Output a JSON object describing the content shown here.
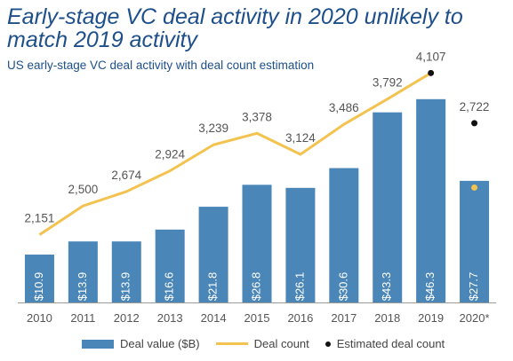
{
  "title": "Early-stage VC deal activity in 2020 unlikely to match 2019 activity",
  "subtitle": "US early-stage VC deal activity with deal count estimation",
  "colors": {
    "bar": "#4a86b8",
    "line": "#f4c24f",
    "estimate": "#111111",
    "axis": "#9a9a9a",
    "label": "#555555"
  },
  "chart_data": {
    "type": "bar",
    "categories": [
      "2010",
      "2011",
      "2012",
      "2013",
      "2014",
      "2015",
      "2016",
      "2017",
      "2018",
      "2019",
      "2020*"
    ],
    "series": [
      {
        "name": "Deal value ($B)",
        "type": "bar",
        "values": [
          10.9,
          13.9,
          13.9,
          16.6,
          21.8,
          26.8,
          26.1,
          30.6,
          43.3,
          46.3,
          27.7
        ],
        "labels": [
          "$10.9",
          "$13.9",
          "$13.9",
          "$16.6",
          "$21.8",
          "$26.8",
          "$26.1",
          "$30.6",
          "$43.3",
          "$46.3",
          "$27.7"
        ]
      },
      {
        "name": "Deal count",
        "type": "line",
        "values": [
          2151,
          2500,
          2674,
          2924,
          3239,
          3378,
          3124,
          3486,
          3792,
          4107,
          2722
        ],
        "labels": [
          "2,151",
          "2,500",
          "2,674",
          "2,924",
          "3,239",
          "3,378",
          "3,124",
          "3,486",
          "3,792",
          "4,107",
          "2,722"
        ]
      },
      {
        "name": "Estimated deal count",
        "type": "scatter",
        "points": [
          {
            "x": "2019",
            "value": 4107
          },
          {
            "x": "2020*",
            "value": 3500
          }
        ]
      }
    ],
    "value_axis_max": 50,
    "count_axis_min": 1000,
    "count_axis_max": 4400,
    "grid": false,
    "legend_position": "bottom"
  }
}
